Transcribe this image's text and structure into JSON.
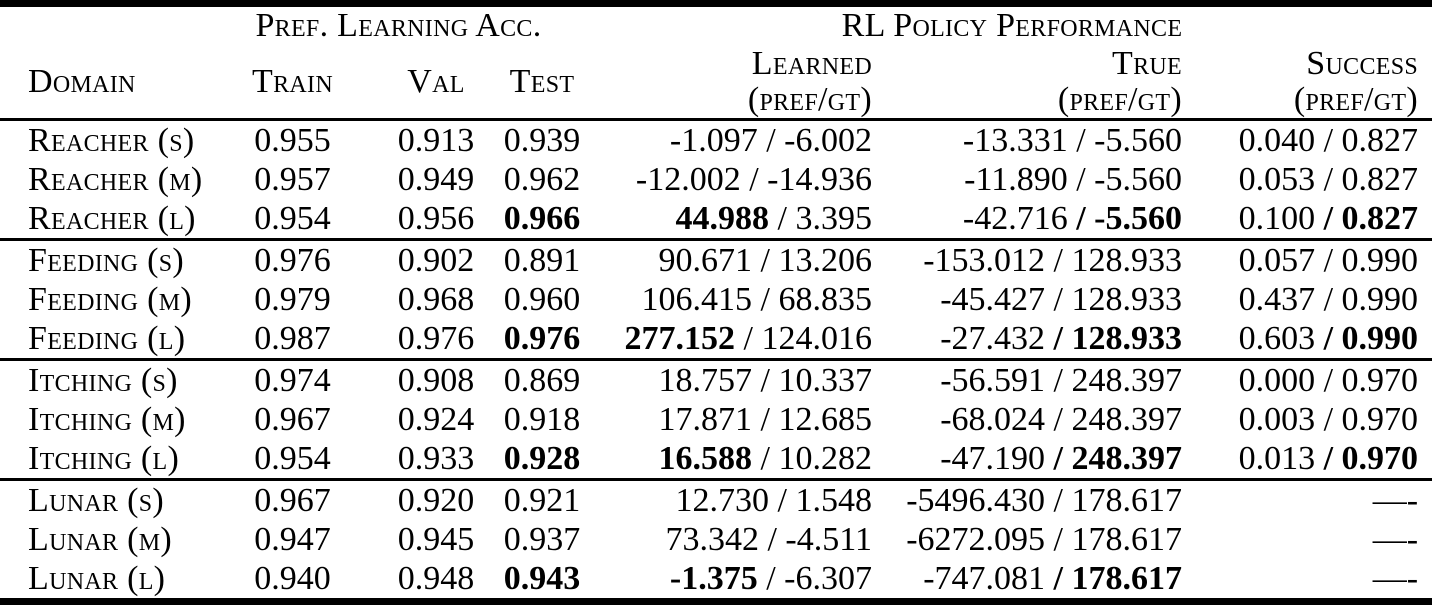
{
  "colors": {
    "background": "#ffffff",
    "text": "#000000",
    "rule": "#000000"
  },
  "table": {
    "group_headers": [
      {
        "label": "Pref. Learning Acc.",
        "span": 3
      },
      {
        "label": "RL Policy Performance",
        "span": 3
      }
    ],
    "column_headers": {
      "domain": "Domain",
      "train": "Train",
      "val": "Val",
      "test": "Test",
      "learned": "Learned",
      "true": "True",
      "success": "Success",
      "prefgt": "(pref/gt)"
    },
    "groups": [
      {
        "name": "reacher",
        "rows": [
          {
            "domain": "Reacher (s)",
            "train": [
              {
                "t": "0.955"
              }
            ],
            "val": [
              {
                "t": "0.913"
              }
            ],
            "test": [
              {
                "t": "0.939"
              }
            ],
            "learned": [
              {
                "t": "-1.097 / -6.002"
              }
            ],
            "true": [
              {
                "t": "-13.331 / -5.560"
              }
            ],
            "success": [
              {
                "t": "0.040 / 0.827"
              }
            ]
          },
          {
            "domain": "Reacher (m)",
            "train": [
              {
                "t": "0.957"
              }
            ],
            "val": [
              {
                "t": "0.949"
              }
            ],
            "test": [
              {
                "t": "0.962"
              }
            ],
            "learned": [
              {
                "t": "-12.002 / -14.936"
              }
            ],
            "true": [
              {
                "t": "-11.890 / -5.560"
              }
            ],
            "success": [
              {
                "t": "0.053 / 0.827"
              }
            ]
          },
          {
            "domain": "Reacher (l)",
            "train": [
              {
                "t": "0.954"
              }
            ],
            "val": [
              {
                "t": "0.956"
              }
            ],
            "test": [
              {
                "t": "0.966",
                "b": true
              }
            ],
            "learned": [
              {
                "t": "44.988",
                "b": true
              },
              {
                "t": " / 3.395"
              }
            ],
            "true": [
              {
                "t": "-42.716 "
              },
              {
                "t": "/ -5.560",
                "b": true
              }
            ],
            "success": [
              {
                "t": "0.100 "
              },
              {
                "t": "/ 0.827",
                "b": true
              }
            ]
          }
        ]
      },
      {
        "name": "feeding",
        "rows": [
          {
            "domain": "Feeding (s)",
            "train": [
              {
                "t": "0.976"
              }
            ],
            "val": [
              {
                "t": "0.902"
              }
            ],
            "test": [
              {
                "t": "0.891"
              }
            ],
            "learned": [
              {
                "t": "90.671 / 13.206"
              }
            ],
            "true": [
              {
                "t": "-153.012 / 128.933"
              }
            ],
            "success": [
              {
                "t": "0.057 / 0.990"
              }
            ]
          },
          {
            "domain": "Feeding (m)",
            "train": [
              {
                "t": "0.979"
              }
            ],
            "val": [
              {
                "t": "0.968"
              }
            ],
            "test": [
              {
                "t": "0.960"
              }
            ],
            "learned": [
              {
                "t": "106.415 / 68.835"
              }
            ],
            "true": [
              {
                "t": "-45.427 / 128.933"
              }
            ],
            "success": [
              {
                "t": "0.437 / 0.990"
              }
            ]
          },
          {
            "domain": "Feeding (l)",
            "train": [
              {
                "t": "0.987"
              }
            ],
            "val": [
              {
                "t": "0.976"
              }
            ],
            "test": [
              {
                "t": "0.976",
                "b": true
              }
            ],
            "learned": [
              {
                "t": "277.152",
                "b": true
              },
              {
                "t": " / 124.016"
              }
            ],
            "true": [
              {
                "t": "-27.432 "
              },
              {
                "t": "/ 128.933",
                "b": true
              }
            ],
            "success": [
              {
                "t": "0.603 "
              },
              {
                "t": "/ 0.990",
                "b": true
              }
            ]
          }
        ]
      },
      {
        "name": "itching",
        "rows": [
          {
            "domain": "Itching (s)",
            "train": [
              {
                "t": "0.974"
              }
            ],
            "val": [
              {
                "t": "0.908"
              }
            ],
            "test": [
              {
                "t": "0.869"
              }
            ],
            "learned": [
              {
                "t": "18.757 / 10.337"
              }
            ],
            "true": [
              {
                "t": "-56.591 / 248.397"
              }
            ],
            "success": [
              {
                "t": "0.000 / 0.970"
              }
            ]
          },
          {
            "domain": "Itching (m)",
            "train": [
              {
                "t": "0.967"
              }
            ],
            "val": [
              {
                "t": "0.924"
              }
            ],
            "test": [
              {
                "t": "0.918"
              }
            ],
            "learned": [
              {
                "t": "17.871 / 12.685"
              }
            ],
            "true": [
              {
                "t": "-68.024 / 248.397"
              }
            ],
            "success": [
              {
                "t": "0.003 / 0.970"
              }
            ]
          },
          {
            "domain": "Itching (l)",
            "train": [
              {
                "t": "0.954"
              }
            ],
            "val": [
              {
                "t": "0.933"
              }
            ],
            "test": [
              {
                "t": "0.928",
                "b": true
              }
            ],
            "learned": [
              {
                "t": "16.588",
                "b": true
              },
              {
                "t": " / 10.282"
              }
            ],
            "true": [
              {
                "t": "-47.190 "
              },
              {
                "t": "/ 248.397",
                "b": true
              }
            ],
            "success": [
              {
                "t": "0.013 "
              },
              {
                "t": "/ 0.970",
                "b": true
              }
            ]
          }
        ]
      },
      {
        "name": "lunar",
        "rows": [
          {
            "domain": "Lunar (s)",
            "train": [
              {
                "t": "0.967"
              }
            ],
            "val": [
              {
                "t": "0.920"
              }
            ],
            "test": [
              {
                "t": "0.921"
              }
            ],
            "learned": [
              {
                "t": "12.730 / 1.548"
              }
            ],
            "true": [
              {
                "t": "-5496.430 / 178.617"
              }
            ],
            "success": [
              {
                "t": "—-"
              }
            ]
          },
          {
            "domain": "Lunar (m)",
            "train": [
              {
                "t": "0.947"
              }
            ],
            "val": [
              {
                "t": "0.945"
              }
            ],
            "test": [
              {
                "t": "0.937"
              }
            ],
            "learned": [
              {
                "t": "73.342 / -4.511"
              }
            ],
            "true": [
              {
                "t": "-6272.095 / 178.617"
              }
            ],
            "success": [
              {
                "t": "—-"
              }
            ]
          },
          {
            "domain": "Lunar (l)",
            "train": [
              {
                "t": "0.940"
              }
            ],
            "val": [
              {
                "t": "0.948"
              }
            ],
            "test": [
              {
                "t": "0.943",
                "b": true
              }
            ],
            "learned": [
              {
                "t": "-1.375",
                "b": true
              },
              {
                "t": " / -6.307"
              }
            ],
            "true": [
              {
                "t": "-747.081 "
              },
              {
                "t": "/ 178.617",
                "b": true
              }
            ],
            "success": [
              {
                "t": "—-"
              }
            ]
          }
        ]
      }
    ]
  }
}
